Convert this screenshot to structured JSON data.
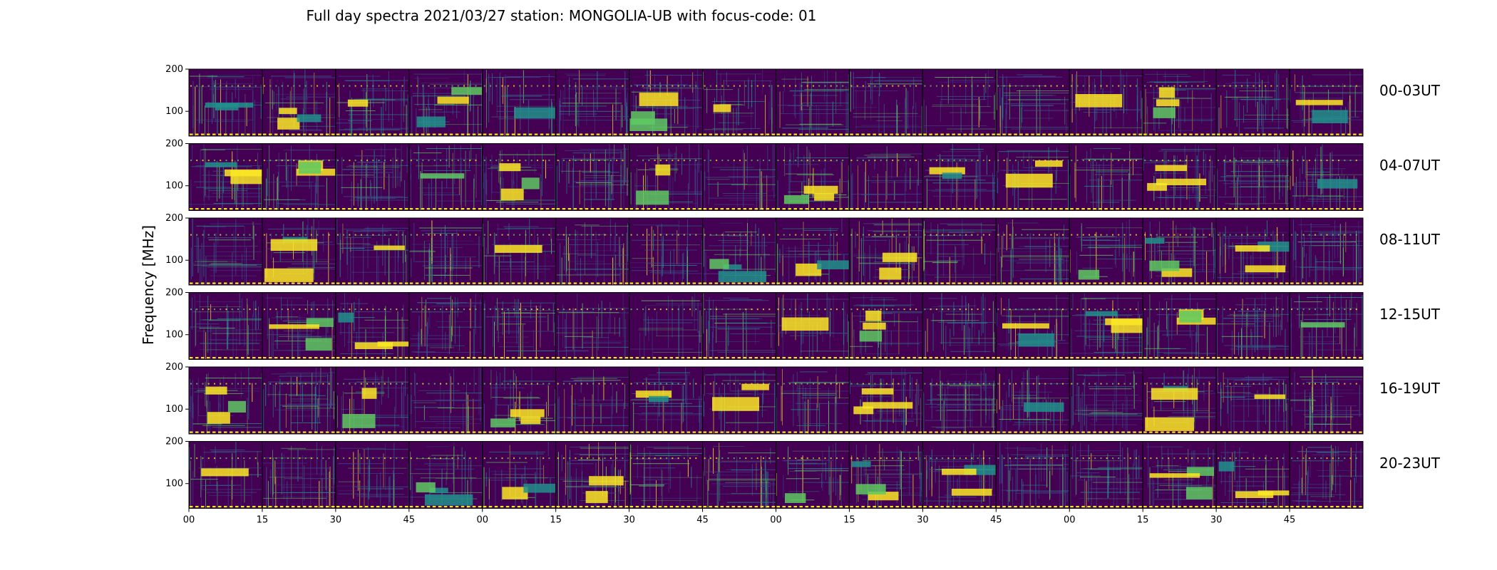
{
  "chart_data": {
    "type": "heatmap",
    "title": "Full day spectra 2021/03/27 station: MONGOLIA-UB with focus-code: 01",
    "ylabel": "Frequency [MHz]",
    "xlabel": "",
    "colormap": "viridis",
    "panels_per_row": 16,
    "minutes_per_panel": 15,
    "y_ticks": [
      "200",
      "100"
    ],
    "x_tick_labels": [
      "00",
      "15",
      "30",
      "45",
      "00",
      "15",
      "30",
      "45",
      "00",
      "15",
      "30",
      "45",
      "00",
      "15",
      "30",
      "45"
    ],
    "rows": [
      {
        "label": "00-03UT",
        "hours": "00-03"
      },
      {
        "label": "04-07UT",
        "hours": "04-07"
      },
      {
        "label": "08-11UT",
        "hours": "08-11"
      },
      {
        "label": "12-15UT",
        "hours": "12-15"
      },
      {
        "label": "16-19UT",
        "hours": "16-19"
      },
      {
        "label": "20-23UT",
        "hours": "20-23"
      }
    ],
    "colors": {
      "background": "#440154",
      "mid": "#3b528b",
      "teal": "#21918c",
      "green": "#5ec962",
      "yellow": "#fde725"
    }
  }
}
